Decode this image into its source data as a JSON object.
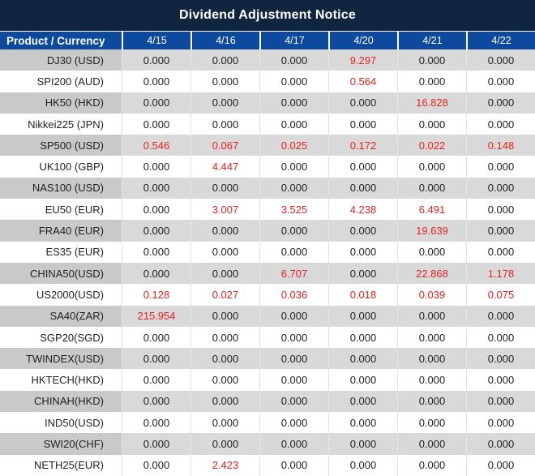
{
  "title": "Dividend Adjustment Notice",
  "colors": {
    "title_bg": "#0F2540",
    "header_bg": "#0D4A9E",
    "row_gray": "#D9D9D9",
    "product_gray": "#C9C9C9",
    "row_white": "#FFFFFF",
    "value_text": "#1F1F1F",
    "highlight_red": "#E8231E"
  },
  "columns": [
    "Product / Currency",
    "4/15",
    "4/16",
    "4/17",
    "4/20",
    "4/21",
    "4/22"
  ],
  "rows": [
    {
      "product": "DJ30 (USD)",
      "values": [
        "0.000",
        "0.000",
        "0.000",
        "9.297",
        "0.000",
        "0.000"
      ],
      "red": [
        3
      ]
    },
    {
      "product": "SPI200 (AUD)",
      "values": [
        "0.000",
        "0.000",
        "0.000",
        "0.564",
        "0.000",
        "0.000"
      ],
      "red": [
        3
      ]
    },
    {
      "product": "HK50 (HKD)",
      "values": [
        "0.000",
        "0.000",
        "0.000",
        "0.000",
        "16.828",
        "0.000"
      ],
      "red": [
        4
      ]
    },
    {
      "product": "Nikkei225 (JPN)",
      "values": [
        "0.000",
        "0.000",
        "0.000",
        "0.000",
        "0.000",
        "0.000"
      ],
      "red": []
    },
    {
      "product": "SP500 (USD)",
      "values": [
        "0.546",
        "0.067",
        "0.025",
        "0.172",
        "0.022",
        "0.148"
      ],
      "red": [
        0,
        1,
        2,
        3,
        4,
        5
      ]
    },
    {
      "product": "UK100 (GBP)",
      "values": [
        "0.000",
        "4.447",
        "0.000",
        "0.000",
        "0.000",
        "0.000"
      ],
      "red": [
        1
      ]
    },
    {
      "product": "NAS100 (USD)",
      "values": [
        "0.000",
        "0.000",
        "0.000",
        "0.000",
        "0.000",
        "0.000"
      ],
      "red": []
    },
    {
      "product": "EU50 (EUR)",
      "values": [
        "0.000",
        "3.007",
        "3.525",
        "4.238",
        "6.491",
        "0.000"
      ],
      "red": [
        1,
        2,
        3,
        4
      ]
    },
    {
      "product": "FRA40 (EUR)",
      "values": [
        "0.000",
        "0.000",
        "0.000",
        "0.000",
        "19.639",
        "0.000"
      ],
      "red": [
        4
      ]
    },
    {
      "product": "ES35 (EUR)",
      "values": [
        "0.000",
        "0.000",
        "0.000",
        "0.000",
        "0.000",
        "0.000"
      ],
      "red": []
    },
    {
      "product": "CHINA50(USD)",
      "values": [
        "0.000",
        "0.000",
        "6.707",
        "0.000",
        "22.868",
        "1.178"
      ],
      "red": [
        2,
        4,
        5
      ]
    },
    {
      "product": "US2000(USD)",
      "values": [
        "0.128",
        "0.027",
        "0.036",
        "0.018",
        "0.039",
        "0.075"
      ],
      "red": [
        0,
        1,
        2,
        3,
        4,
        5
      ]
    },
    {
      "product": "SA40(ZAR)",
      "values": [
        "215.954",
        "0.000",
        "0.000",
        "0.000",
        "0.000",
        "0.000"
      ],
      "red": [
        0
      ]
    },
    {
      "product": "SGP20(SGD)",
      "values": [
        "0.000",
        "0.000",
        "0.000",
        "0.000",
        "0.000",
        "0.000"
      ],
      "red": []
    },
    {
      "product": "TWINDEX(USD)",
      "values": [
        "0.000",
        "0.000",
        "0.000",
        "0.000",
        "0.000",
        "0.000"
      ],
      "red": []
    },
    {
      "product": "HKTECH(HKD)",
      "values": [
        "0.000",
        "0.000",
        "0.000",
        "0.000",
        "0.000",
        "0.000"
      ],
      "red": []
    },
    {
      "product": "CHINAH(HKD)",
      "values": [
        "0.000",
        "0.000",
        "0.000",
        "0.000",
        "0.000",
        "0.000"
      ],
      "red": []
    },
    {
      "product": "IND50(USD)",
      "values": [
        "0.000",
        "0.000",
        "0.000",
        "0.000",
        "0.000",
        "0.000"
      ],
      "red": []
    },
    {
      "product": "SWI20(CHF)",
      "values": [
        "0.000",
        "0.000",
        "0.000",
        "0.000",
        "0.000",
        "0.000"
      ],
      "red": []
    },
    {
      "product": "NETH25(EUR)",
      "values": [
        "0.000",
        "2.423",
        "0.000",
        "0.000",
        "0.000",
        "0.000"
      ],
      "red": [
        1
      ]
    }
  ]
}
